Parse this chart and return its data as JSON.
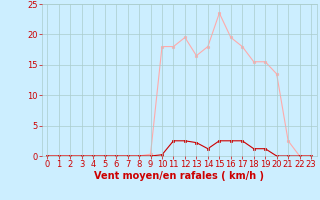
{
  "x": [
    0,
    1,
    2,
    3,
    4,
    5,
    6,
    7,
    8,
    9,
    10,
    11,
    12,
    13,
    14,
    15,
    16,
    17,
    18,
    19,
    20,
    21,
    22,
    23
  ],
  "y_rafales": [
    0,
    0,
    0,
    0,
    0,
    0,
    0,
    0,
    0,
    0.3,
    18,
    18,
    19.5,
    16.5,
    18,
    23.5,
    19.5,
    18,
    15.5,
    15.5,
    13.5,
    2.5,
    0,
    0
  ],
  "y_moyen": [
    0,
    0,
    0,
    0,
    0,
    0,
    0,
    0,
    0,
    0,
    0.2,
    2.5,
    2.5,
    2.2,
    1.2,
    2.5,
    2.5,
    2.5,
    1.2,
    1.2,
    0,
    0,
    0,
    0
  ],
  "line_color_rafales": "#ffaaaa",
  "line_color_moyen": "#cc0000",
  "marker_color_rafales": "#ffaaaa",
  "marker_color_moyen": "#cc0000",
  "background_color": "#cceeff",
  "grid_color": "#aacccc",
  "xlabel": "Vent moyen/en rafales ( km/h )",
  "xlabel_color": "#cc0000",
  "xlabel_fontsize": 7,
  "tick_color": "#cc0000",
  "tick_fontsize": 6,
  "ylim": [
    0,
    25
  ],
  "xlim": [
    -0.5,
    23.5
  ],
  "yticks": [
    0,
    5,
    10,
    15,
    20,
    25
  ],
  "xticks": [
    0,
    1,
    2,
    3,
    4,
    5,
    6,
    7,
    8,
    9,
    10,
    11,
    12,
    13,
    14,
    15,
    16,
    17,
    18,
    19,
    20,
    21,
    22,
    23
  ]
}
